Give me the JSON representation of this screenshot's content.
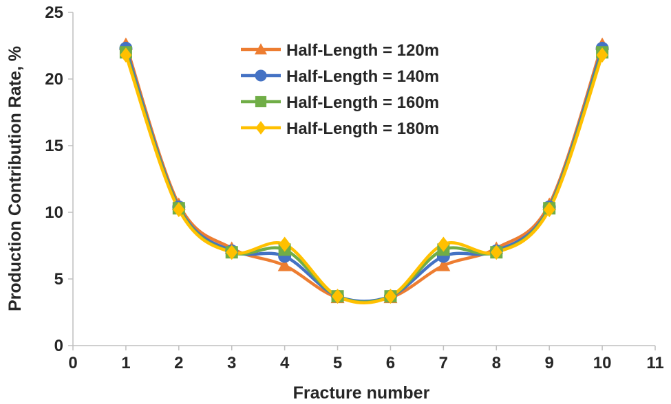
{
  "chart_data": {
    "type": "line",
    "title": "",
    "xlabel": "Fracture number",
    "ylabel": "Production Contribution Rate, %",
    "xlim": [
      0,
      11
    ],
    "ylim": [
      0,
      25
    ],
    "x_ticks": [
      0,
      1,
      2,
      3,
      4,
      5,
      6,
      7,
      8,
      9,
      10,
      11
    ],
    "y_ticks": [
      0,
      5,
      10,
      15,
      20,
      25
    ],
    "smooth": true,
    "grid": false,
    "legend_position": "top-center",
    "x": [
      1,
      2,
      3,
      4,
      5,
      6,
      7,
      8,
      9,
      10
    ],
    "series": [
      {
        "name": "Half-Length = 120m",
        "color": "#ED7D31",
        "marker": "triangle",
        "values": [
          22.6,
          10.6,
          7.3,
          6.0,
          3.6,
          3.6,
          6.0,
          7.3,
          10.6,
          22.6
        ]
      },
      {
        "name": "Half-Length = 140m",
        "color": "#4472C4",
        "marker": "circle",
        "values": [
          22.3,
          10.4,
          7.1,
          6.7,
          3.7,
          3.7,
          6.7,
          7.1,
          10.4,
          22.3
        ]
      },
      {
        "name": "Half-Length = 160m",
        "color": "#70AD47",
        "marker": "square",
        "values": [
          22.0,
          10.3,
          7.0,
          7.2,
          3.7,
          3.7,
          7.2,
          7.0,
          10.3,
          22.0
        ]
      },
      {
        "name": "Half-Length = 180m",
        "color": "#FFC000",
        "marker": "diamond",
        "values": [
          21.8,
          10.2,
          7.0,
          7.6,
          3.7,
          3.7,
          7.6,
          7.0,
          10.2,
          21.8
        ]
      }
    ]
  }
}
